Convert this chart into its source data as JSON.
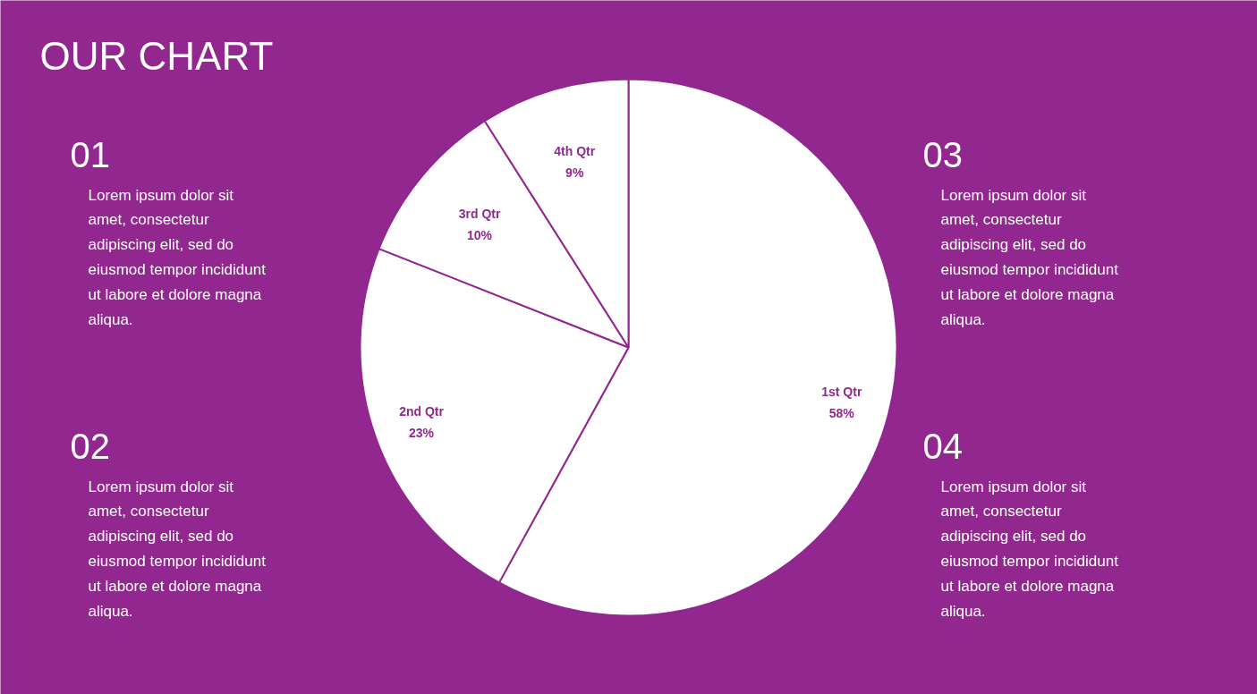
{
  "chart_data": {
    "type": "pie",
    "title": "OUR CHART",
    "categories": [
      "1st Qtr",
      "2nd Qtr",
      "3rd Qtr",
      "4th Qtr"
    ],
    "values": [
      58,
      23,
      10,
      9
    ],
    "value_labels": [
      "58%",
      "23%",
      "10%",
      "9%"
    ],
    "colors": [
      "#ffffff",
      "#ffffff",
      "#ffffff",
      "#ffffff"
    ],
    "annotations": [
      "01",
      "Lorem ipsum dolor sit amet, consectetur adipiscing elit, sed do eiusmod tempor incididunt ut labore et dolore magna aliqua.",
      "02",
      "Lorem ipsum dolor sit amet, consectetur adipiscing elit, sed do eiusmod tempor incididunt ut labore et dolore magna aliqua.",
      "03",
      "Lorem ipsum dolor sit amet, consectetur adipiscing elit, sed do eiusmod tempor incididunt ut labore et dolore magna aliqua.",
      "04",
      "Lorem ipsum dolor sit amet, consectetur adipiscing elit, sed do eiusmod tempor incididunt ut labore et dolore magna aliqua."
    ]
  }
}
